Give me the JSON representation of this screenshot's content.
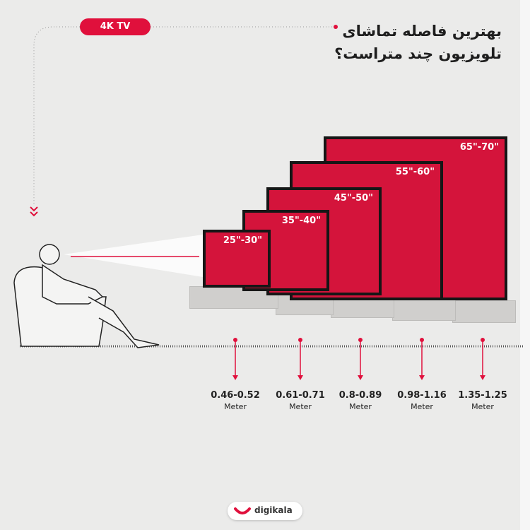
{
  "title_lines": [
    "بهترین فاصله تماشای",
    "تلویزیون چند متراست؟"
  ],
  "badge": "4K TV",
  "accent": "#e0103c",
  "tvs": [
    {
      "size": "25\"-30\"",
      "distance": "0.46-0.52",
      "unit": "Meter"
    },
    {
      "size": "35\"-40\"",
      "distance": "0.61-0.71",
      "unit": "Meter"
    },
    {
      "size": "45\"-50\"",
      "distance": "0.8-0.89",
      "unit": "Meter"
    },
    {
      "size": "55\"-60\"",
      "distance": "0.98-1.16",
      "unit": "Meter"
    },
    {
      "size": "65\"-70\"",
      "distance": "1.35-1.25",
      "unit": "Meter"
    }
  ],
  "logo": "digikala"
}
